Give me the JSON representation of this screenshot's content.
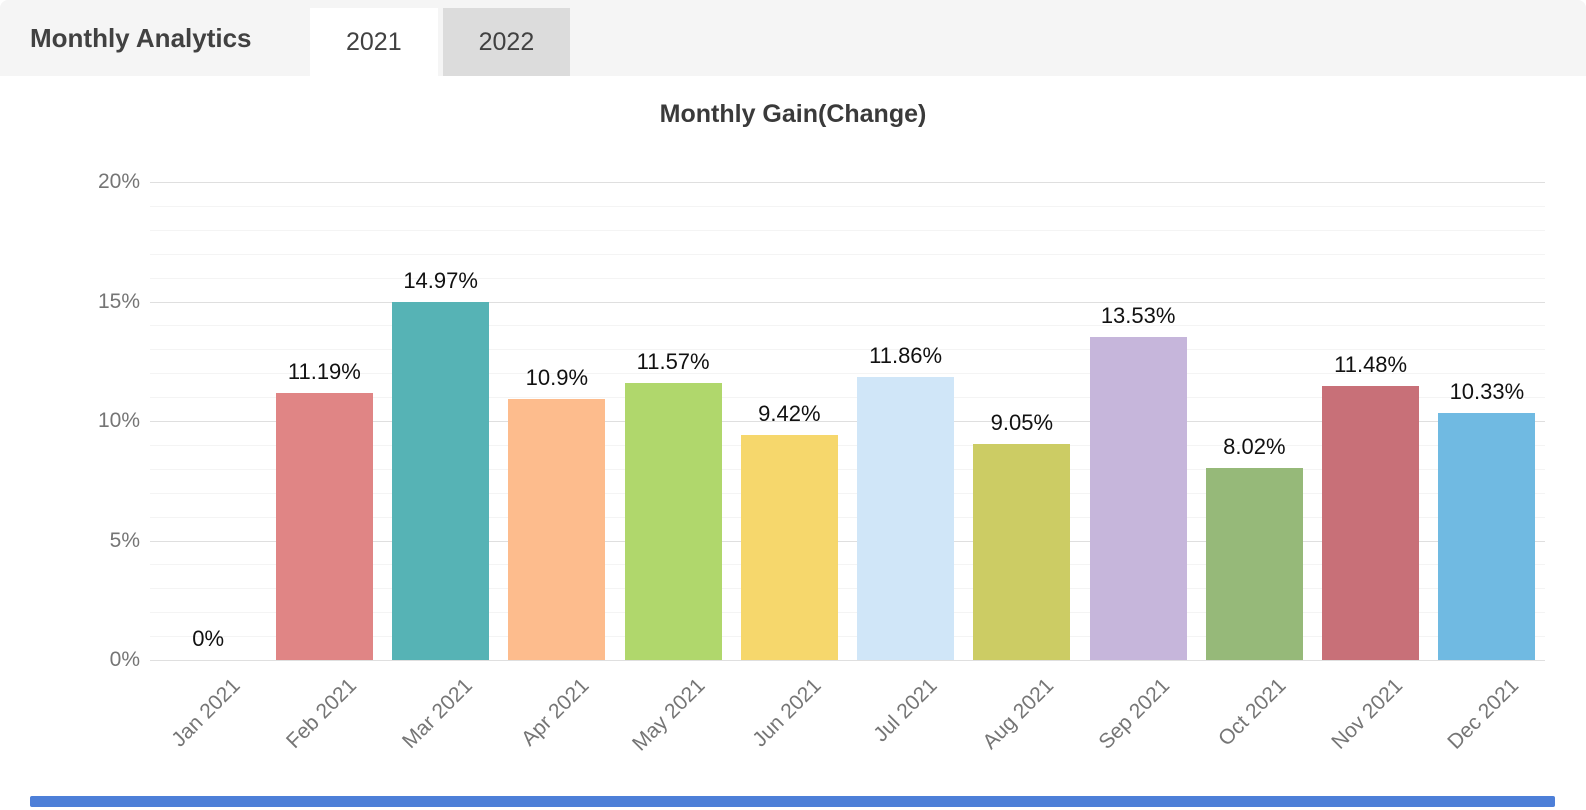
{
  "header": {
    "title": "Monthly Analytics",
    "tabs": [
      {
        "label": "2021",
        "active": true
      },
      {
        "label": "2022",
        "active": false
      }
    ]
  },
  "chart_data": {
    "type": "bar",
    "title": "Monthly Gain(Change)",
    "categories": [
      "Jan 2021",
      "Feb 2021",
      "Mar 2021",
      "Apr 2021",
      "May 2021",
      "Jun 2021",
      "Jul 2021",
      "Aug 2021",
      "Sep 2021",
      "Oct 2021",
      "Nov 2021",
      "Dec 2021"
    ],
    "values": [
      0,
      11.19,
      14.97,
      10.9,
      11.57,
      9.42,
      11.86,
      9.05,
      13.53,
      8.02,
      11.48,
      10.33
    ],
    "value_labels": [
      "0%",
      "11.19%",
      "14.97%",
      "10.9%",
      "11.57%",
      "9.42%",
      "11.86%",
      "9.05%",
      "13.53%",
      "8.02%",
      "11.48%",
      "10.33%"
    ],
    "bar_colors": [
      null,
      "#e08585",
      "#56b3b5",
      "#fdbc8d",
      "#b0d76c",
      "#f6d76c",
      "#d0e6f8",
      "#cccc64",
      "#c6b6db",
      "#96b979",
      "#c87078",
      "#70bae2"
    ],
    "xlabel": "",
    "ylabel": "",
    "ylim": [
      0,
      20
    ],
    "y_ticks": [
      "0%",
      "5%",
      "10%",
      "15%",
      "20%"
    ],
    "y_tick_values": [
      0,
      5,
      10,
      15,
      20
    ],
    "minor_grid_step": 1,
    "grid": "horizontal",
    "legend_position": "none"
  },
  "colors": {
    "header_bg": "#f5f5f5",
    "tab_active_bg": "#ffffff",
    "tab_inactive_bg": "#dcdcdc",
    "title_text": "#3a3a3a",
    "axis_text": "#757575",
    "value_label_text": "#111111",
    "major_grid": "#dfdfdf",
    "minor_grid": "#f4f4f4",
    "bottom_bar": "#4d7fd8"
  }
}
